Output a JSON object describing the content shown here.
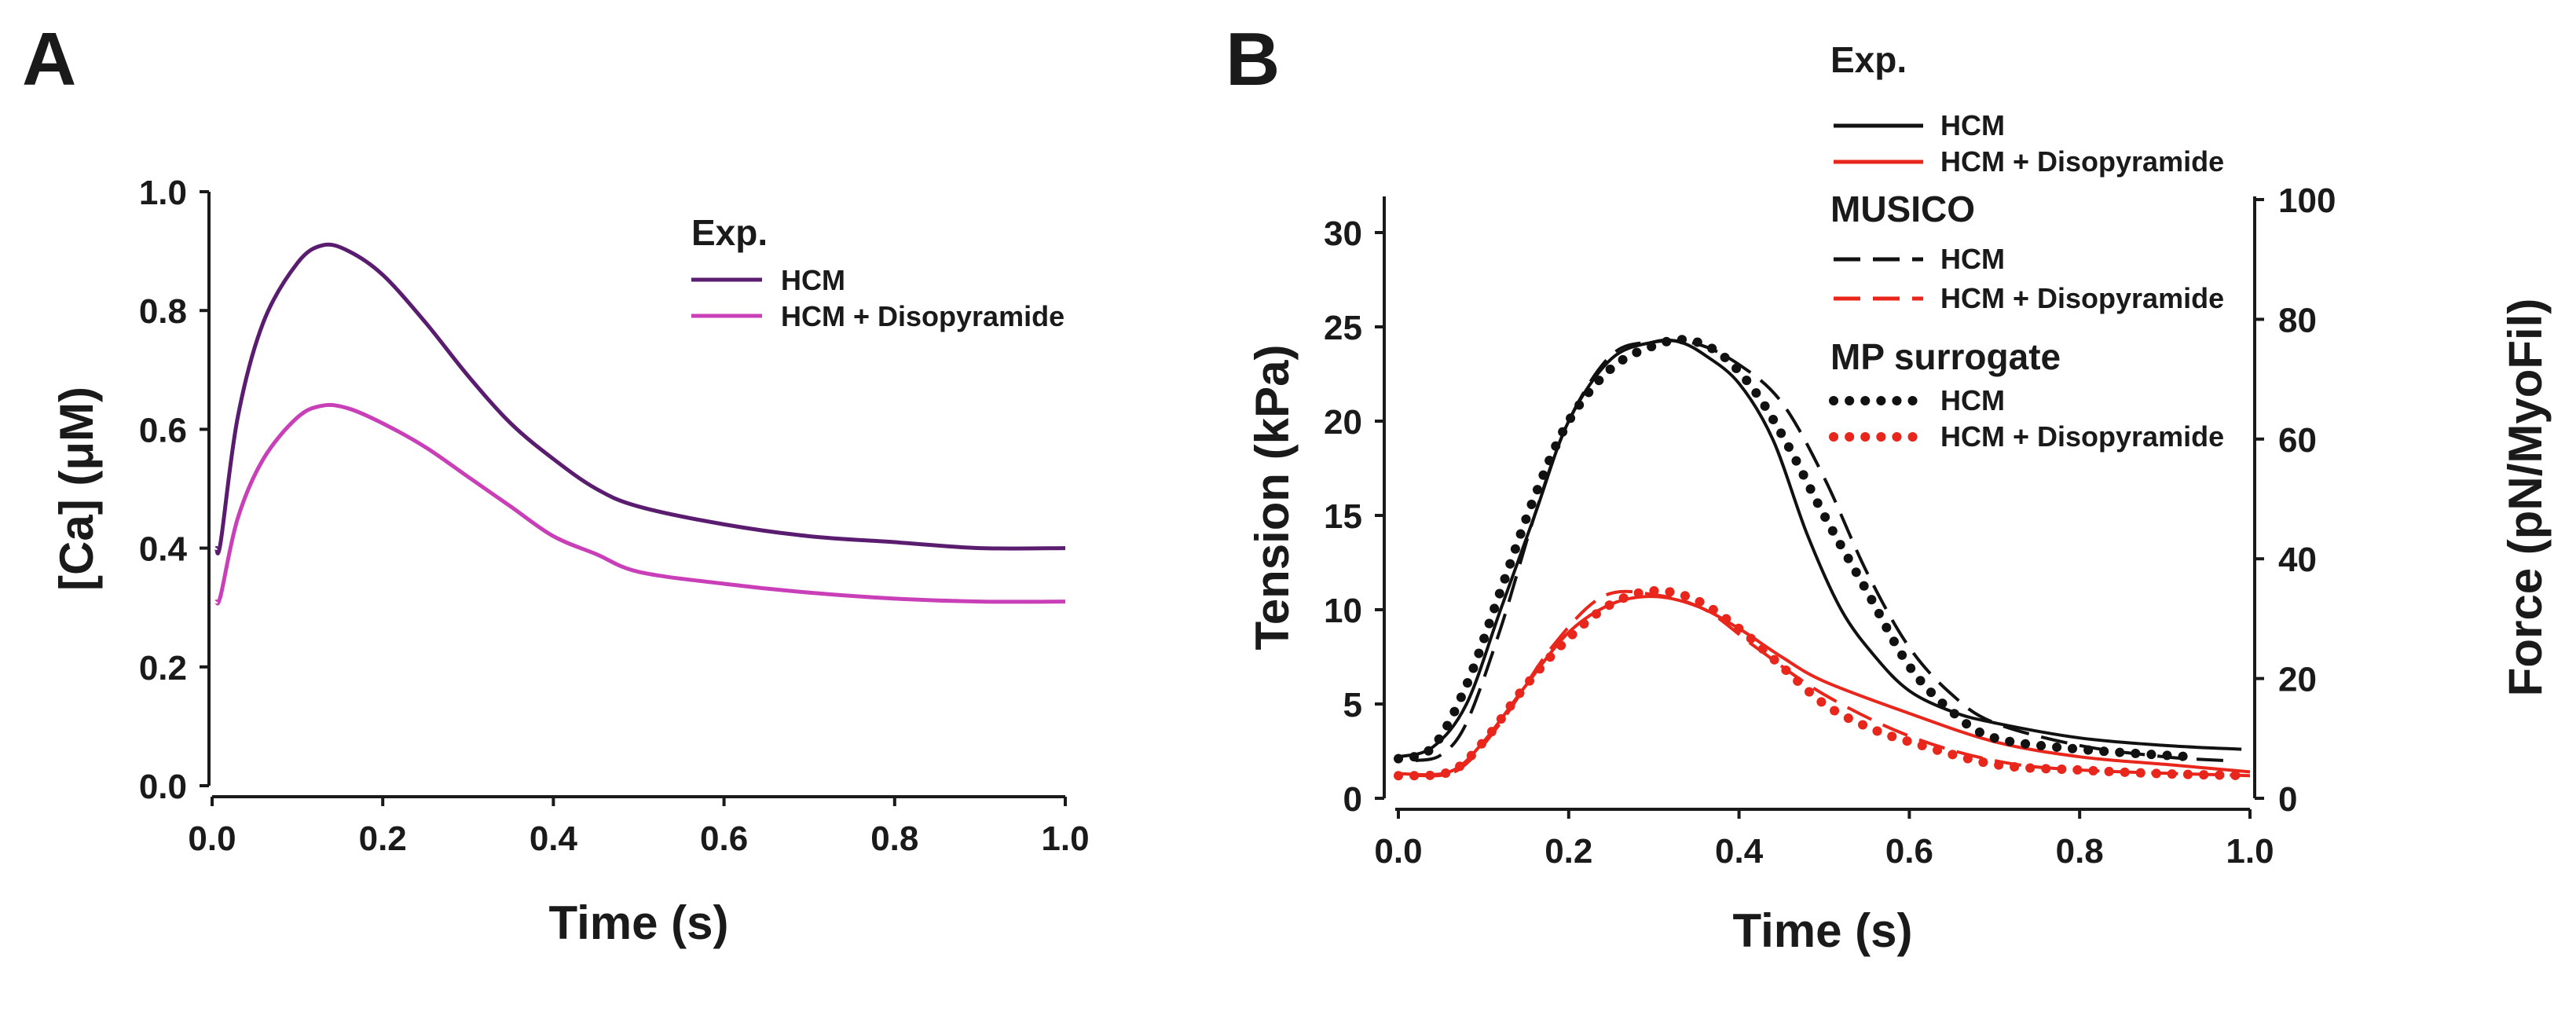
{
  "chart_data": [
    {
      "type": "line",
      "panel_label": "A",
      "xlabel": "Time (s)",
      "ylabel": "[Ca] (μM)",
      "xlim": [
        0,
        1.0
      ],
      "ylim": [
        0,
        1.0
      ],
      "xticks": [
        "0.0",
        "0.2",
        "0.4",
        "0.6",
        "0.8",
        "1.0"
      ],
      "yticks": [
        "0.0",
        "0.2",
        "0.4",
        "0.6",
        "0.8",
        "1.0"
      ],
      "legend": {
        "title": "Exp.",
        "placement": "top-right"
      },
      "grid": false,
      "series": [
        {
          "name": "HCM",
          "group": "Exp.",
          "style": "solid",
          "color": "#5a1c6e",
          "x": [
            0.005,
            0.01,
            0.03,
            0.06,
            0.1,
            0.13,
            0.16,
            0.2,
            0.25,
            0.3,
            0.35,
            0.4,
            0.45,
            0.5,
            0.6,
            0.7,
            0.8,
            0.9,
            1.0
          ],
          "y": [
            0.4,
            0.41,
            0.62,
            0.78,
            0.88,
            0.91,
            0.9,
            0.86,
            0.78,
            0.69,
            0.61,
            0.55,
            0.5,
            0.47,
            0.44,
            0.42,
            0.41,
            0.4,
            0.4
          ]
        },
        {
          "name": "HCM + Disopyramide",
          "group": "Exp.",
          "style": "solid",
          "color": "#c83fb8",
          "x": [
            0.005,
            0.01,
            0.03,
            0.06,
            0.1,
            0.13,
            0.16,
            0.2,
            0.25,
            0.3,
            0.35,
            0.4,
            0.45,
            0.5,
            0.6,
            0.7,
            0.8,
            0.9,
            1.0
          ],
          "y": [
            0.31,
            0.32,
            0.45,
            0.55,
            0.62,
            0.64,
            0.635,
            0.61,
            0.57,
            0.52,
            0.47,
            0.42,
            0.39,
            0.36,
            0.34,
            0.325,
            0.315,
            0.31,
            0.31
          ]
        }
      ]
    },
    {
      "type": "line",
      "panel_label": "B",
      "xlabel": "Time (s)",
      "ylabel": "Tension (kPa)",
      "y2label": "Force (pN/MyoFil)",
      "xlim": [
        0,
        1.0
      ],
      "ylim": [
        0,
        31.75
      ],
      "y2lim": [
        0,
        100
      ],
      "xticks": [
        "0.0",
        "0.2",
        "0.4",
        "0.6",
        "0.8",
        "1.0"
      ],
      "yticks": [
        "0",
        "5",
        "10",
        "15",
        "20",
        "25",
        "30"
      ],
      "y2ticks": [
        "0",
        "20",
        "40",
        "60",
        "80",
        "100"
      ],
      "legend": {
        "placement": "top-right",
        "groups": [
          "Exp.",
          "MUSICO",
          "MP surrogate"
        ]
      },
      "grid": false,
      "series": [
        {
          "name": "HCM",
          "group": "Exp.",
          "style": "solid",
          "color": "#111111",
          "x": [
            0,
            0.04,
            0.08,
            0.12,
            0.16,
            0.2,
            0.25,
            0.3,
            0.33,
            0.36,
            0.4,
            0.44,
            0.48,
            0.52,
            0.56,
            0.6,
            0.65,
            0.7,
            0.8,
            0.9,
            0.99
          ],
          "y": [
            2.2,
            2.7,
            5,
            10,
            15,
            20,
            23.3,
            24.2,
            24.2,
            23.5,
            22,
            19,
            14,
            10,
            7.5,
            5.7,
            4.6,
            4,
            3.2,
            2.8,
            2.6
          ]
        },
        {
          "name": "HCM + Disopyramide",
          "group": "Exp.",
          "style": "solid",
          "color": "#e8261c",
          "x": [
            0,
            0.06,
            0.1,
            0.15,
            0.2,
            0.25,
            0.3,
            0.35,
            0.4,
            0.45,
            0.5,
            0.6,
            0.7,
            0.8,
            0.9,
            1.0
          ],
          "y": [
            1.3,
            1.4,
            3,
            6,
            8.8,
            10.3,
            10.7,
            10.2,
            9,
            7.5,
            6.2,
            4.5,
            3,
            2.2,
            1.8,
            1.4
          ]
        },
        {
          "name": "HCM",
          "group": "MUSICO",
          "style": "dashed",
          "color": "#111111",
          "x": [
            0.02,
            0.05,
            0.08,
            0.12,
            0.16,
            0.2,
            0.25,
            0.3,
            0.35,
            0.4,
            0.45,
            0.5,
            0.55,
            0.6,
            0.65,
            0.7,
            0.8,
            0.9,
            0.97
          ],
          "y": [
            2,
            2.3,
            4,
            9,
            15,
            20,
            23.5,
            24.2,
            24.1,
            23,
            21,
            17,
            12,
            8,
            5.5,
            4,
            2.8,
            2.2,
            2
          ]
        },
        {
          "name": "HCM + Disopyramide",
          "group": "MUSICO",
          "style": "dashed",
          "color": "#e8261c",
          "x": [
            0.02,
            0.07,
            0.12,
            0.18,
            0.24,
            0.3,
            0.36,
            0.42,
            0.5,
            0.6,
            0.7,
            0.8,
            1.0
          ],
          "y": [
            1.2,
            1.5,
            4,
            8,
            10.7,
            10.8,
            10,
            8,
            5.5,
            3.3,
            2,
            1.5,
            1.2
          ]
        },
        {
          "name": "HCM",
          "group": "MP surrogate",
          "style": "dotted",
          "color": "#111111",
          "x": [
            0,
            0.04,
            0.08,
            0.12,
            0.16,
            0.2,
            0.25,
            0.3,
            0.34,
            0.38,
            0.42,
            0.46,
            0.5,
            0.55,
            0.6,
            0.65,
            0.7,
            0.8,
            0.93
          ],
          "y": [
            2.1,
            2.7,
            6,
            11,
            16,
            20,
            22.8,
            24,
            24.3,
            23.5,
            21.5,
            18.5,
            15,
            11,
            7,
            4.6,
            3.2,
            2.6,
            2.2
          ]
        },
        {
          "name": "HCM + Disopyramide",
          "group": "MP surrogate",
          "style": "dotted",
          "color": "#e8261c",
          "x": [
            0,
            0.06,
            0.1,
            0.15,
            0.2,
            0.25,
            0.3,
            0.35,
            0.4,
            0.45,
            0.5,
            0.55,
            0.6,
            0.7,
            0.8,
            0.9,
            1.0
          ],
          "y": [
            1.2,
            1.4,
            3,
            6,
            8.5,
            10.3,
            11,
            10.5,
            9,
            7,
            5,
            3.8,
            3,
            1.8,
            1.5,
            1.3,
            1.2
          ]
        }
      ]
    }
  ]
}
